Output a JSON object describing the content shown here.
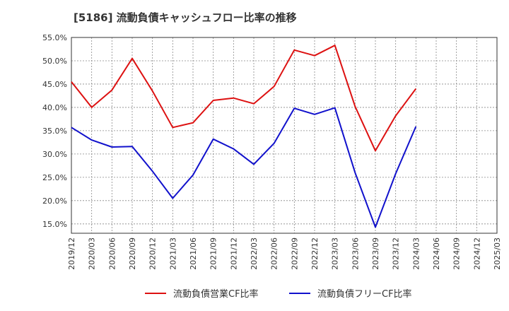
{
  "chart_data": {
    "type": "line",
    "title": "[5186]  流動負債キャッシュフロー比率の推移",
    "xlabel": "",
    "ylabel": "",
    "ylim": [
      13.0,
      55.0
    ],
    "yticks": [
      15,
      20,
      25,
      30,
      35,
      40,
      45,
      50,
      55
    ],
    "ytick_labels": [
      "15.0%",
      "20.0%",
      "25.0%",
      "30.0%",
      "35.0%",
      "40.0%",
      "45.0%",
      "50.0%",
      "55.0%"
    ],
    "categories": [
      "2019/12",
      "2020/03",
      "2020/06",
      "2020/09",
      "2020/12",
      "2021/03",
      "2021/06",
      "2021/09",
      "2021/12",
      "2022/03",
      "2022/06",
      "2022/09",
      "2022/12",
      "2023/03",
      "2023/06",
      "2023/09",
      "2023/12",
      "2024/03",
      "2024/06",
      "2024/09",
      "2024/12",
      "2025/03"
    ],
    "grid": true,
    "legend_position": "bottom",
    "series": [
      {
        "name": "流動負債営業CF比率",
        "color": "#dd1111",
        "values": [
          45.5,
          40.0,
          43.7,
          50.5,
          43.5,
          35.7,
          36.7,
          41.5,
          42.0,
          40.8,
          44.5,
          52.3,
          51.1,
          53.3,
          40.2,
          30.7,
          38.2,
          44.0,
          null,
          null,
          null,
          null
        ]
      },
      {
        "name": "流動負債フリーCF比率",
        "color": "#1111cc",
        "values": [
          35.7,
          33.0,
          31.5,
          31.6,
          26.3,
          20.5,
          25.5,
          33.2,
          31.1,
          27.8,
          32.3,
          39.8,
          38.5,
          39.9,
          26.0,
          14.3,
          25.8,
          35.9,
          null,
          null,
          null,
          null
        ]
      }
    ]
  }
}
